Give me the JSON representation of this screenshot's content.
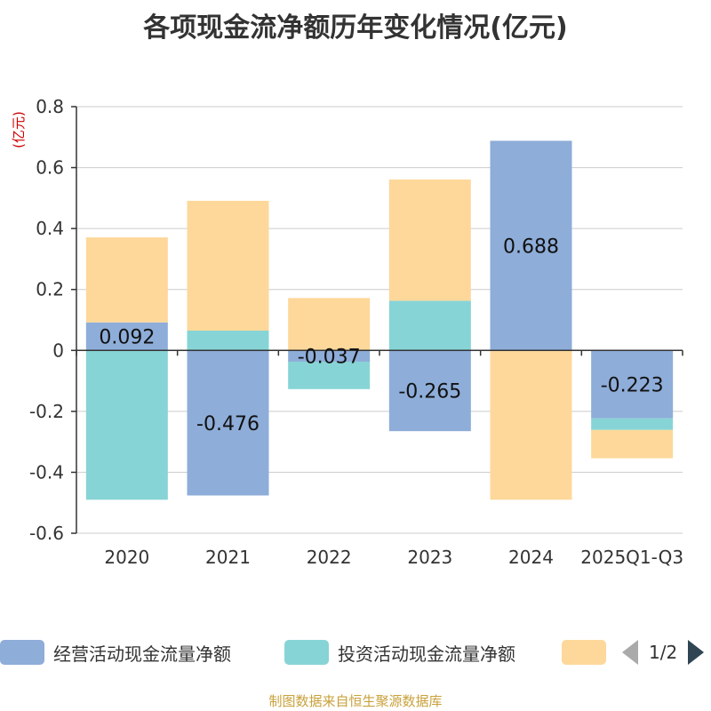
{
  "chart_data": {
    "type": "bar",
    "stacked": true,
    "title": "各项现金流净额历年变化情况(亿元)",
    "ylabel": "(亿元)",
    "categories": [
      "2020",
      "2021",
      "2022",
      "2023",
      "2024",
      "2025Q1-Q3"
    ],
    "ylim": [
      -0.6,
      0.8
    ],
    "yticks": [
      "0.8",
      "0.6",
      "0.4",
      "0.2",
      "0",
      "-0.2",
      "-0.4",
      "-0.6"
    ],
    "grid": true,
    "legend_position": "bottom",
    "series": [
      {
        "name": "经营活动现金流量净额",
        "color": "#8eadd9",
        "values": [
          0.092,
          -0.476,
          -0.037,
          -0.265,
          0.688,
          -0.223
        ],
        "labels": [
          "0.092",
          "-0.476",
          "-0.037",
          "-0.265",
          "0.688",
          "-0.223"
        ]
      },
      {
        "name": "投资活动现金流量净额",
        "color": "#87d4d6",
        "values": [
          -0.49,
          0.065,
          -0.09,
          0.163,
          0.0,
          -0.038
        ]
      },
      {
        "name": "",
        "color": "#fdd89a",
        "values": [
          0.279,
          0.426,
          0.172,
          0.398,
          -0.49,
          -0.093
        ]
      }
    ]
  },
  "legend": {
    "pager_text": "1/2"
  },
  "source_note": "制图数据来自恒生聚源数据库"
}
